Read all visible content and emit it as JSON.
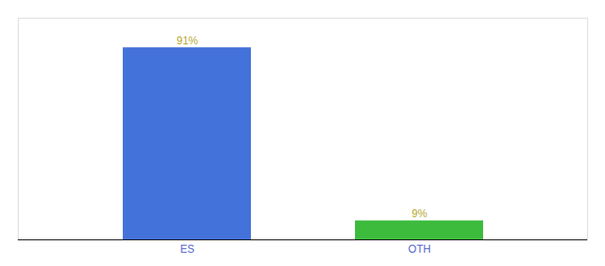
{
  "chart_data": {
    "type": "bar",
    "categories": [
      "ES",
      "OTH"
    ],
    "values": [
      91,
      9
    ],
    "value_labels": [
      "91%",
      "9%"
    ],
    "data_labels": true,
    "colors": [
      "#4472db",
      "#3dbb3d"
    ],
    "ylim": [
      0,
      105
    ],
    "tick_labels": "x",
    "grid": false
  }
}
